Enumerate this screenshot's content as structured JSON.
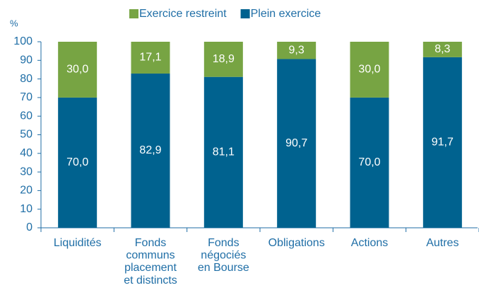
{
  "chart_data": {
    "type": "stacked_bar",
    "y_label": "%",
    "categories": [
      "Liquidités",
      "Fonds\ncommuns\nplacement\net distincts",
      "Fonds\nnégociés\nen Bourse",
      "Obligations",
      "Actions",
      "Autres"
    ],
    "series": [
      {
        "name": "Plein exercice",
        "color": "#00628f",
        "values": [
          70.0,
          82.9,
          81.1,
          90.7,
          70.0,
          91.7
        ],
        "value_labels": [
          "70,0",
          "82,9",
          "81,1",
          "90,7",
          "70,0",
          "91,7"
        ]
      },
      {
        "name": "Exercice restreint",
        "color": "#77a443",
        "values": [
          30.0,
          17.1,
          18.9,
          9.3,
          30.0,
          8.3
        ],
        "value_labels": [
          "30,0",
          "17,1",
          "18,9",
          "9,3",
          "30,0",
          "8,3"
        ]
      }
    ],
    "ylim": [
      0,
      100
    ],
    "yticks": [
      0,
      10,
      20,
      30,
      40,
      50,
      60,
      70,
      80,
      90,
      100
    ]
  }
}
